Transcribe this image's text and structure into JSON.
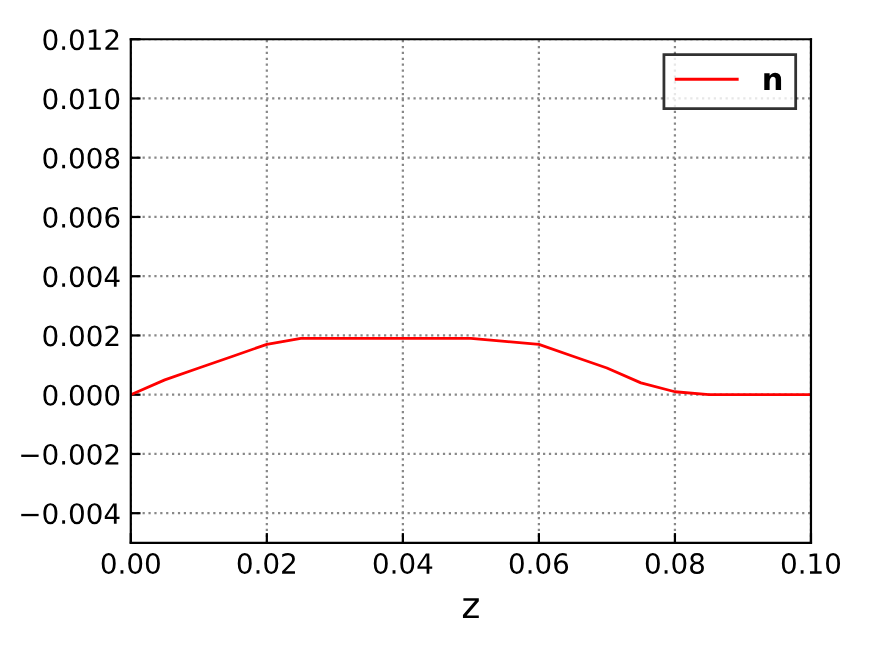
{
  "chart_data": {
    "type": "line",
    "xlabel": "z",
    "x": [
      0,
      0.005,
      0.01,
      0.015,
      0.02,
      0.025,
      0.03,
      0.035,
      0.04,
      0.045,
      0.05,
      0.055,
      0.06,
      0.065,
      0.07,
      0.075,
      0.08,
      0.085,
      0.09,
      0.095,
      0.1
    ],
    "series": [
      {
        "name": "n",
        "color": "#ff0000",
        "values": [
          0,
          0.0005,
          0.0009,
          0.0013,
          0.0017,
          0.0019,
          0.0019,
          0.0019,
          0.0019,
          0.0019,
          0.0019,
          0.0018,
          0.0017,
          0.0013,
          0.0009,
          0.0004,
          0.0001,
          0.0,
          0.0,
          0.0,
          0.0
        ]
      }
    ],
    "xlim": [
      0,
      0.1
    ],
    "xticks": [
      {
        "value": 0,
        "label": "0.00"
      },
      0.02,
      0.04,
      0.06,
      0.08,
      {
        "value": 0.1,
        "label": "0.10"
      }
    ],
    "ylim": [
      -0.005,
      0.012
    ],
    "yticks": [
      {
        "value": -0.004,
        "label": "−0.004"
      },
      {
        "value": -0.002,
        "label": "−0.002"
      },
      {
        "value": 0,
        "label": "0.000"
      },
      0.002,
      0.004,
      0.006,
      0.008,
      {
        "value": 0.01,
        "label": "0.010"
      },
      0.012
    ],
    "grid": true,
    "legend": "top right",
    "line_style": "solid",
    "marker": "none"
  }
}
